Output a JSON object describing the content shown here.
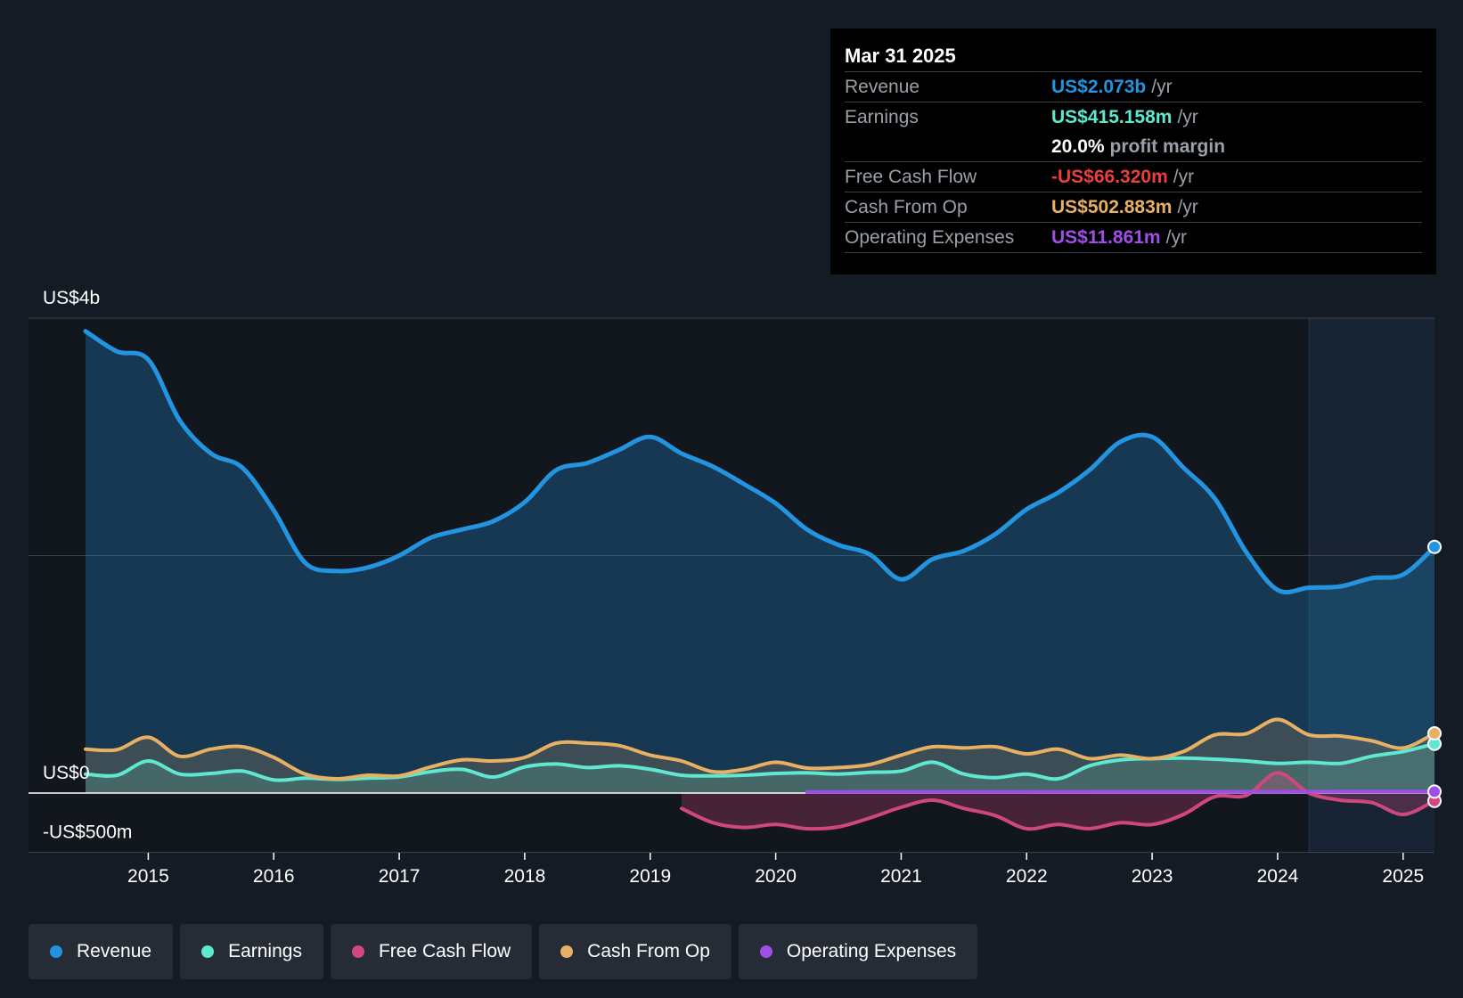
{
  "colors": {
    "revenue": "#2394e0",
    "earnings": "#5ee8d0",
    "free_cash_flow": "#d0477f",
    "cash_from_op": "#e8b062",
    "operating_expenses": "#a04ee8"
  },
  "tooltip": {
    "date": "Mar 31 2025",
    "rows": {
      "revenue": {
        "label": "Revenue",
        "value": "US$2.073b",
        "unit": "/yr"
      },
      "earnings": {
        "label": "Earnings",
        "value": "US$415.158m",
        "unit": "/yr"
      },
      "margin": {
        "value": "20.0%",
        "unit": "profit margin"
      },
      "fcf": {
        "label": "Free Cash Flow",
        "value": "-US$66.320m",
        "unit": "/yr"
      },
      "cfo": {
        "label": "Cash From Op",
        "value": "US$502.883m",
        "unit": "/yr"
      },
      "opex": {
        "label": "Operating Expenses",
        "value": "US$11.861m",
        "unit": "/yr"
      }
    }
  },
  "legend": {
    "revenue": "Revenue",
    "earnings": "Earnings",
    "free_cash_flow": "Free Cash Flow",
    "cash_from_op": "Cash From Op",
    "operating_expenses": "Operating Expenses"
  },
  "chart_data": {
    "type": "line",
    "title": "",
    "xlabel": "",
    "ylabel": "",
    "y_labels": [
      "US$4b",
      "US$0",
      "-US$500m"
    ],
    "ylim": [
      -500,
      4000
    ],
    "xlim": [
      2014.5,
      2025.25
    ],
    "x_ticks": [
      "2015",
      "2016",
      "2017",
      "2018",
      "2019",
      "2020",
      "2021",
      "2022",
      "2023",
      "2024",
      "2025"
    ],
    "forecast_start": 2024.25,
    "series": [
      {
        "name": "Revenue",
        "key": "revenue",
        "x": [
          2014.5,
          2014.75,
          2015.0,
          2015.25,
          2015.5,
          2015.75,
          2016.0,
          2016.25,
          2016.5,
          2016.75,
          2017.0,
          2017.25,
          2017.5,
          2017.75,
          2018.0,
          2018.25,
          2018.5,
          2018.75,
          2019.0,
          2019.25,
          2019.5,
          2019.75,
          2020.0,
          2020.25,
          2020.5,
          2020.75,
          2021.0,
          2021.25,
          2021.5,
          2021.75,
          2022.0,
          2022.25,
          2022.5,
          2022.75,
          2023.0,
          2023.25,
          2023.5,
          2023.75,
          2024.0,
          2024.25,
          2024.5,
          2024.75,
          2025.0,
          2025.25
        ],
        "values": [
          3890,
          3720,
          3650,
          3140,
          2860,
          2740,
          2380,
          1940,
          1870,
          1900,
          2000,
          2150,
          2220,
          2290,
          2450,
          2720,
          2780,
          2890,
          3000,
          2860,
          2750,
          2600,
          2440,
          2220,
          2090,
          2010,
          1800,
          1970,
          2040,
          2180,
          2390,
          2530,
          2720,
          2960,
          3000,
          2740,
          2480,
          2030,
          1710,
          1730,
          1740,
          1810,
          1840,
          2073
        ]
      },
      {
        "name": "Earnings",
        "key": "earnings",
        "x": [
          2014.5,
          2014.75,
          2015.0,
          2015.25,
          2015.5,
          2015.75,
          2016.0,
          2016.25,
          2016.5,
          2016.75,
          2017.0,
          2017.25,
          2017.5,
          2017.75,
          2018.0,
          2018.25,
          2018.5,
          2018.75,
          2019.0,
          2019.25,
          2019.5,
          2019.75,
          2020.0,
          2020.25,
          2020.5,
          2020.75,
          2021.0,
          2021.25,
          2021.5,
          2021.75,
          2022.0,
          2022.25,
          2022.5,
          2022.75,
          2023.0,
          2023.25,
          2023.5,
          2023.75,
          2024.0,
          2024.25,
          2024.5,
          2024.75,
          2025.0,
          2025.25
        ],
        "values": [
          160,
          150,
          270,
          160,
          165,
          185,
          110,
          125,
          115,
          125,
          135,
          180,
          200,
          135,
          220,
          245,
          215,
          230,
          200,
          150,
          145,
          150,
          165,
          170,
          160,
          175,
          185,
          260,
          160,
          130,
          160,
          120,
          230,
          280,
          290,
          295,
          285,
          270,
          250,
          260,
          250,
          310,
          350,
          415
        ]
      },
      {
        "name": "Free Cash Flow",
        "key": "free_cash_flow",
        "x": [
          2019.25,
          2019.5,
          2019.75,
          2020.0,
          2020.25,
          2020.5,
          2020.75,
          2021.0,
          2021.25,
          2021.5,
          2021.75,
          2022.0,
          2022.25,
          2022.5,
          2022.75,
          2023.0,
          2023.25,
          2023.5,
          2023.75,
          2024.0,
          2024.25,
          2024.5,
          2024.75,
          2025.0,
          2025.25
        ],
        "values": [
          -130,
          -250,
          -290,
          -265,
          -300,
          -285,
          -210,
          -120,
          -60,
          -130,
          -190,
          -300,
          -265,
          -300,
          -250,
          -265,
          -180,
          -30,
          -20,
          170,
          0,
          -60,
          -80,
          -180,
          -66
        ]
      },
      {
        "name": "Cash From Op",
        "key": "cash_from_op",
        "x": [
          2014.5,
          2014.75,
          2015.0,
          2015.25,
          2015.5,
          2015.75,
          2016.0,
          2016.25,
          2016.5,
          2016.75,
          2017.0,
          2017.25,
          2017.5,
          2017.75,
          2018.0,
          2018.25,
          2018.5,
          2018.75,
          2019.0,
          2019.25,
          2019.5,
          2019.75,
          2020.0,
          2020.25,
          2020.5,
          2020.75,
          2021.0,
          2021.25,
          2021.5,
          2021.75,
          2022.0,
          2022.25,
          2022.5,
          2022.75,
          2023.0,
          2023.25,
          2023.5,
          2023.75,
          2024.0,
          2024.25,
          2024.5,
          2024.75,
          2025.0,
          2025.25
        ],
        "values": [
          370,
          365,
          470,
          310,
          370,
          390,
          300,
          160,
          120,
          150,
          145,
          220,
          280,
          270,
          300,
          420,
          420,
          400,
          320,
          270,
          180,
          200,
          260,
          210,
          215,
          240,
          320,
          390,
          380,
          390,
          330,
          370,
          290,
          320,
          290,
          350,
          490,
          500,
          620,
          490,
          480,
          440,
          380,
          503
        ]
      },
      {
        "name": "Operating Expenses",
        "key": "operating_expenses",
        "x": [
          2020.25,
          2021.0,
          2022.0,
          2023.0,
          2024.0,
          2025.25
        ],
        "values": [
          8,
          9,
          10,
          11,
          11.5,
          11.861
        ]
      }
    ]
  }
}
